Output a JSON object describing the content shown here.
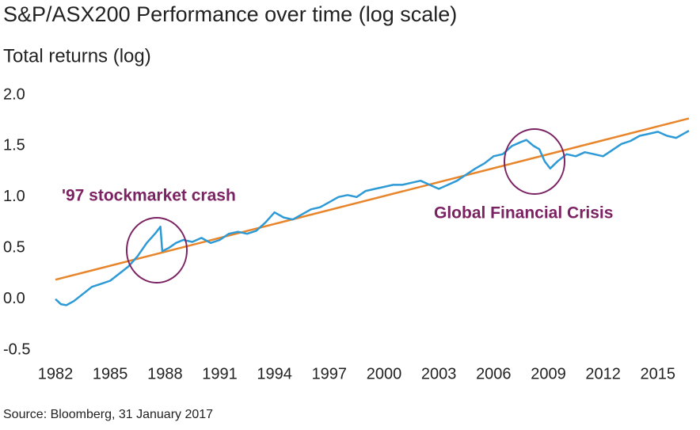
{
  "chart_data": {
    "type": "line",
    "title": "S&P/ASX200 Performance over time (log scale)",
    "y_label": "Total returns (log)",
    "source": "Source: Bloomberg, 31 January 2017",
    "annotations": [
      "'97 stockmarket crash",
      "Global Financial Crisis"
    ],
    "annotation_color": "#7b2263",
    "xlim": [
      1982,
      2016.7
    ],
    "xticks": [
      1982,
      1985,
      1988,
      1991,
      1994,
      1997,
      2000,
      2003,
      2006,
      2009,
      2012,
      2015
    ],
    "ylim": [
      -0.6,
      2.0
    ],
    "yticks": [
      {
        "value": 2.0,
        "label": "2.0"
      },
      {
        "value": 1.5,
        "label": "1.5"
      },
      {
        "value": 1.0,
        "label": "1.0"
      },
      {
        "value": 0.5,
        "label": "0.5"
      },
      {
        "value": 0.0,
        "label": "0.0"
      },
      {
        "value": -0.5,
        "label": "-0.5"
      }
    ],
    "grid": false,
    "series": [
      {
        "color": "#2d9ad6",
        "x": [
          1982.0,
          1982.3,
          1982.6,
          1983.0,
          1983.5,
          1984.0,
          1984.5,
          1985.0,
          1985.5,
          1986.0,
          1986.5,
          1987.0,
          1987.5,
          1987.75,
          1987.85,
          1988.2,
          1988.6,
          1989.0,
          1989.5,
          1990.0,
          1990.5,
          1991.0,
          1991.5,
          1992.0,
          1992.5,
          1993.0,
          1993.5,
          1994.0,
          1994.5,
          1995.0,
          1995.5,
          1996.0,
          1996.5,
          1997.0,
          1997.5,
          1998.0,
          1998.5,
          1999.0,
          1999.5,
          2000.0,
          2000.5,
          2001.0,
          2001.5,
          2002.0,
          2002.5,
          2003.0,
          2003.5,
          2004.0,
          2004.5,
          2005.0,
          2005.5,
          2006.0,
          2006.5,
          2007.0,
          2007.5,
          2007.8,
          2008.2,
          2008.5,
          2008.8,
          2009.1,
          2009.5,
          2010.0,
          2010.5,
          2011.0,
          2011.5,
          2012.0,
          2012.5,
          2013.0,
          2013.5,
          2014.0,
          2014.5,
          2015.0,
          2015.5,
          2016.0,
          2016.5,
          2016.7
        ],
        "values": [
          0.0,
          -0.05,
          -0.06,
          -0.02,
          0.05,
          0.12,
          0.15,
          0.18,
          0.25,
          0.32,
          0.42,
          0.55,
          0.65,
          0.71,
          0.47,
          0.5,
          0.55,
          0.58,
          0.56,
          0.6,
          0.55,
          0.58,
          0.64,
          0.66,
          0.64,
          0.67,
          0.75,
          0.85,
          0.8,
          0.78,
          0.83,
          0.88,
          0.9,
          0.95,
          1.0,
          1.02,
          1.0,
          1.06,
          1.08,
          1.1,
          1.12,
          1.12,
          1.14,
          1.16,
          1.12,
          1.08,
          1.12,
          1.16,
          1.22,
          1.28,
          1.33,
          1.4,
          1.42,
          1.5,
          1.54,
          1.56,
          1.5,
          1.47,
          1.35,
          1.28,
          1.35,
          1.42,
          1.4,
          1.44,
          1.42,
          1.4,
          1.46,
          1.52,
          1.55,
          1.6,
          1.62,
          1.64,
          1.6,
          1.58,
          1.63,
          1.65
        ]
      },
      {
        "color": "#e8852b",
        "x": [
          1982.0,
          2016.7
        ],
        "values": [
          0.19,
          1.77
        ]
      }
    ]
  }
}
